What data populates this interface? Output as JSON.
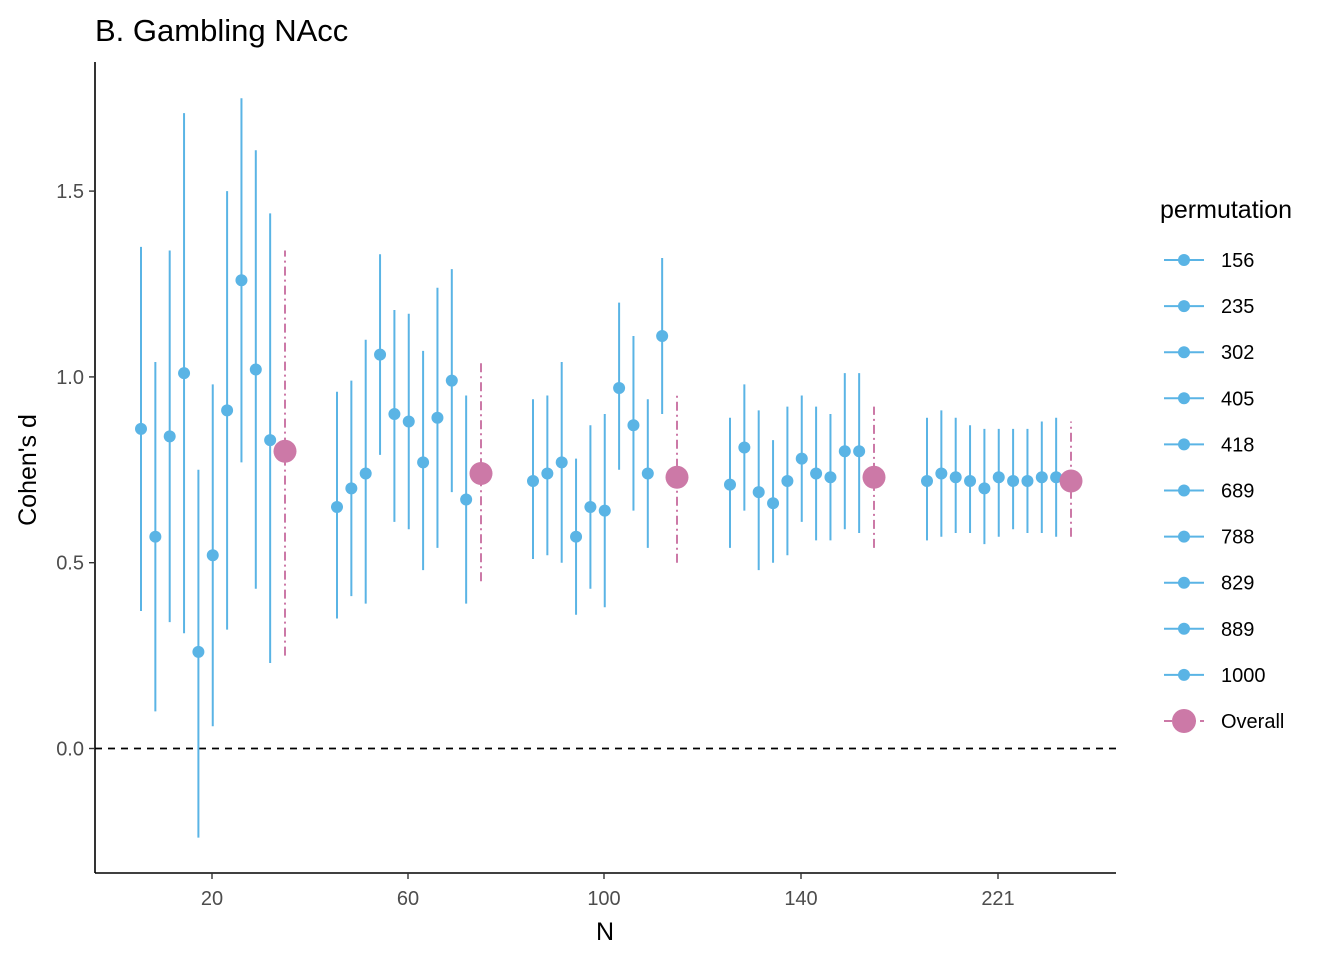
{
  "chart_data": {
    "type": "scatter",
    "title": "B. Gambling NAcc",
    "xlabel": "N",
    "ylabel": "Cohen's d",
    "ylim": [
      -0.33,
      1.85
    ],
    "yticks": [
      0.0,
      0.5,
      1.0,
      1.5
    ],
    "ytick_labels": [
      "0.0",
      "0.5",
      "1.0",
      "1.5"
    ],
    "x_groups": [
      "20",
      "60",
      "100",
      "140",
      "221"
    ],
    "reference_line": 0.0,
    "legend": {
      "title": "permutation",
      "placement": "right",
      "entries": [
        "156",
        "235",
        "302",
        "405",
        "418",
        "689",
        "788",
        "829",
        "889",
        "1000",
        "Overall"
      ]
    },
    "colors": {
      "permutation": "#5ab4e5",
      "overall": "#cc79a7",
      "reference": "#000000"
    },
    "groups": [
      {
        "label": "20",
        "permutations": [
          {
            "name": "156",
            "estimate": 0.86,
            "lower": 0.37,
            "upper": 1.35
          },
          {
            "name": "235",
            "estimate": 0.57,
            "lower": 0.1,
            "upper": 1.04
          },
          {
            "name": "302",
            "estimate": 0.84,
            "lower": 0.34,
            "upper": 1.34
          },
          {
            "name": "405",
            "estimate": 1.01,
            "lower": 0.31,
            "upper": 1.71
          },
          {
            "name": "418",
            "estimate": 0.26,
            "lower": -0.24,
            "upper": 0.75
          },
          {
            "name": "689",
            "estimate": 0.52,
            "lower": 0.06,
            "upper": 0.98
          },
          {
            "name": "788",
            "estimate": 0.91,
            "lower": 0.32,
            "upper": 1.5
          },
          {
            "name": "829",
            "estimate": 1.26,
            "lower": 0.77,
            "upper": 1.75
          },
          {
            "name": "889",
            "estimate": 1.02,
            "lower": 0.43,
            "upper": 1.61
          },
          {
            "name": "1000",
            "estimate": 0.83,
            "lower": 0.23,
            "upper": 1.44
          }
        ],
        "overall": {
          "estimate": 0.8,
          "lower": 0.25,
          "upper": 1.34
        }
      },
      {
        "label": "60",
        "permutations": [
          {
            "name": "156",
            "estimate": 0.65,
            "lower": 0.35,
            "upper": 0.96
          },
          {
            "name": "235",
            "estimate": 0.7,
            "lower": 0.41,
            "upper": 0.99
          },
          {
            "name": "302",
            "estimate": 0.74,
            "lower": 0.39,
            "upper": 1.1
          },
          {
            "name": "405",
            "estimate": 1.06,
            "lower": 0.79,
            "upper": 1.33
          },
          {
            "name": "418",
            "estimate": 0.9,
            "lower": 0.61,
            "upper": 1.18
          },
          {
            "name": "689",
            "estimate": 0.88,
            "lower": 0.59,
            "upper": 1.17
          },
          {
            "name": "788",
            "estimate": 0.77,
            "lower": 0.48,
            "upper": 1.07
          },
          {
            "name": "829",
            "estimate": 0.89,
            "lower": 0.54,
            "upper": 1.24
          },
          {
            "name": "889",
            "estimate": 0.99,
            "lower": 0.69,
            "upper": 1.29
          },
          {
            "name": "1000",
            "estimate": 0.67,
            "lower": 0.39,
            "upper": 0.95
          }
        ],
        "overall": {
          "estimate": 0.74,
          "lower": 0.45,
          "upper": 1.04
        }
      },
      {
        "label": "100",
        "permutations": [
          {
            "name": "156",
            "estimate": 0.72,
            "lower": 0.51,
            "upper": 0.94
          },
          {
            "name": "235",
            "estimate": 0.74,
            "lower": 0.52,
            "upper": 0.95
          },
          {
            "name": "302",
            "estimate": 0.77,
            "lower": 0.5,
            "upper": 1.04
          },
          {
            "name": "405",
            "estimate": 0.57,
            "lower": 0.36,
            "upper": 0.78
          },
          {
            "name": "418",
            "estimate": 0.65,
            "lower": 0.43,
            "upper": 0.87
          },
          {
            "name": "689",
            "estimate": 0.64,
            "lower": 0.38,
            "upper": 0.9
          },
          {
            "name": "788",
            "estimate": 0.97,
            "lower": 0.75,
            "upper": 1.2
          },
          {
            "name": "829",
            "estimate": 0.87,
            "lower": 0.64,
            "upper": 1.11
          },
          {
            "name": "889",
            "estimate": 0.74,
            "lower": 0.54,
            "upper": 0.94
          },
          {
            "name": "1000",
            "estimate": 1.11,
            "lower": 0.9,
            "upper": 1.32
          }
        ],
        "overall": {
          "estimate": 0.73,
          "lower": 0.5,
          "upper": 0.96
        }
      },
      {
        "label": "140",
        "permutations": [
          {
            "name": "156",
            "estimate": 0.71,
            "lower": 0.54,
            "upper": 0.89
          },
          {
            "name": "235",
            "estimate": 0.81,
            "lower": 0.64,
            "upper": 0.98
          },
          {
            "name": "302",
            "estimate": 0.69,
            "lower": 0.48,
            "upper": 0.91
          },
          {
            "name": "405",
            "estimate": 0.66,
            "lower": 0.5,
            "upper": 0.83
          },
          {
            "name": "418",
            "estimate": 0.72,
            "lower": 0.52,
            "upper": 0.92
          },
          {
            "name": "689",
            "estimate": 0.78,
            "lower": 0.61,
            "upper": 0.95
          },
          {
            "name": "788",
            "estimate": 0.74,
            "lower": 0.56,
            "upper": 0.92
          },
          {
            "name": "829",
            "estimate": 0.73,
            "lower": 0.56,
            "upper": 0.9
          },
          {
            "name": "889",
            "estimate": 0.8,
            "lower": 0.59,
            "upper": 1.01
          },
          {
            "name": "1000",
            "estimate": 0.8,
            "lower": 0.58,
            "upper": 1.01
          }
        ],
        "overall": {
          "estimate": 0.73,
          "lower": 0.54,
          "upper": 0.92
        }
      },
      {
        "label": "221",
        "permutations": [
          {
            "name": "156",
            "estimate": 0.72,
            "lower": 0.56,
            "upper": 0.89
          },
          {
            "name": "235",
            "estimate": 0.74,
            "lower": 0.57,
            "upper": 0.91
          },
          {
            "name": "302",
            "estimate": 0.73,
            "lower": 0.58,
            "upper": 0.89
          },
          {
            "name": "405",
            "estimate": 0.72,
            "lower": 0.58,
            "upper": 0.87
          },
          {
            "name": "418",
            "estimate": 0.7,
            "lower": 0.55,
            "upper": 0.86
          },
          {
            "name": "689",
            "estimate": 0.73,
            "lower": 0.57,
            "upper": 0.86
          },
          {
            "name": "788",
            "estimate": 0.72,
            "lower": 0.59,
            "upper": 0.86
          },
          {
            "name": "829",
            "estimate": 0.72,
            "lower": 0.58,
            "upper": 0.86
          },
          {
            "name": "889",
            "estimate": 0.73,
            "lower": 0.58,
            "upper": 0.88
          },
          {
            "name": "1000",
            "estimate": 0.73,
            "lower": 0.57,
            "upper": 0.89
          }
        ],
        "overall": {
          "estimate": 0.72,
          "lower": 0.57,
          "upper": 0.88
        }
      }
    ]
  }
}
